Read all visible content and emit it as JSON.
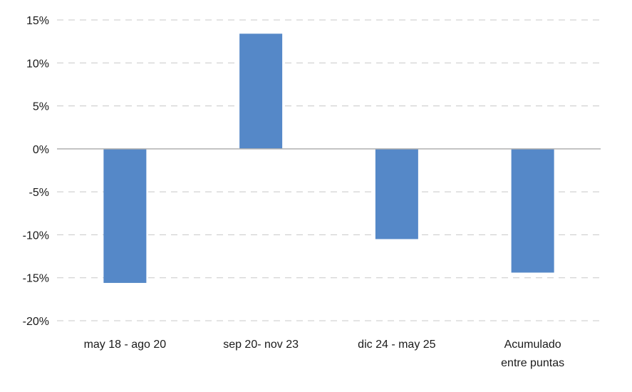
{
  "chart_data": {
    "type": "bar",
    "categories": [
      [
        "may 18 - ago 20"
      ],
      [
        "sep 20- nov 23"
      ],
      [
        "dic 24 - may 25"
      ],
      [
        "Acumulado",
        "entre puntas"
      ]
    ],
    "values": [
      -15.6,
      13.4,
      -10.5,
      -14.4
    ],
    "ylim": [
      -20,
      15
    ],
    "yticks": [
      15,
      10,
      5,
      0,
      -5,
      -10,
      -15,
      -20
    ],
    "ytick_labels": [
      "15%",
      "10%",
      "5%",
      "0%",
      "-5%",
      "-10%",
      "-15%",
      "-20%"
    ],
    "grid": true,
    "bar_color": "#5588c8",
    "grid_color": "#c8c8c8",
    "zero_line_color": "#b0b0b0"
  }
}
